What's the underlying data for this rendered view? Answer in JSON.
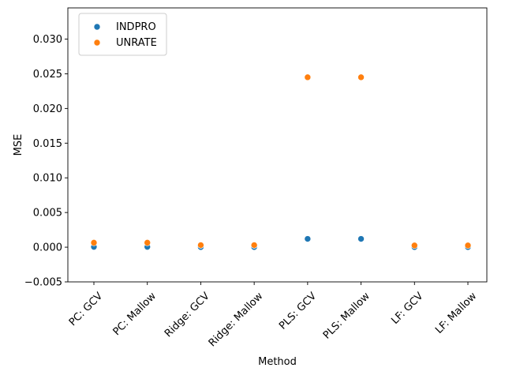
{
  "chart_data": {
    "type": "scatter",
    "categories": [
      "PC: GCV",
      "PC: Mallow",
      "Ridge: GCV",
      "Ridge: Mallow",
      "PLS: GCV",
      "PLS: Mallow",
      "LF: GCV",
      "LF: Mallow"
    ],
    "series": [
      {
        "name": "INDPRO",
        "color": "#1f77b4",
        "values": [
          5e-05,
          5e-05,
          2e-05,
          2e-05,
          0.0012,
          0.0012,
          2e-05,
          2e-05
        ]
      },
      {
        "name": "UNRATE",
        "color": "#ff7f0e",
        "values": [
          0.00065,
          0.00065,
          0.0003,
          0.0003,
          0.0245,
          0.0245,
          0.00025,
          0.00025
        ]
      }
    ],
    "xlabel": "Method",
    "ylabel": "MSE",
    "ylim": [
      -0.005,
      0.0345
    ],
    "yticks": [
      -0.005,
      0.0,
      0.005,
      0.01,
      0.015,
      0.02,
      0.025,
      0.03
    ],
    "ytick_labels": [
      "−0.005",
      "0.000",
      "0.005",
      "0.010",
      "0.015",
      "0.020",
      "0.025",
      "0.030"
    ],
    "legend_position": "top-left",
    "grid": false
  }
}
